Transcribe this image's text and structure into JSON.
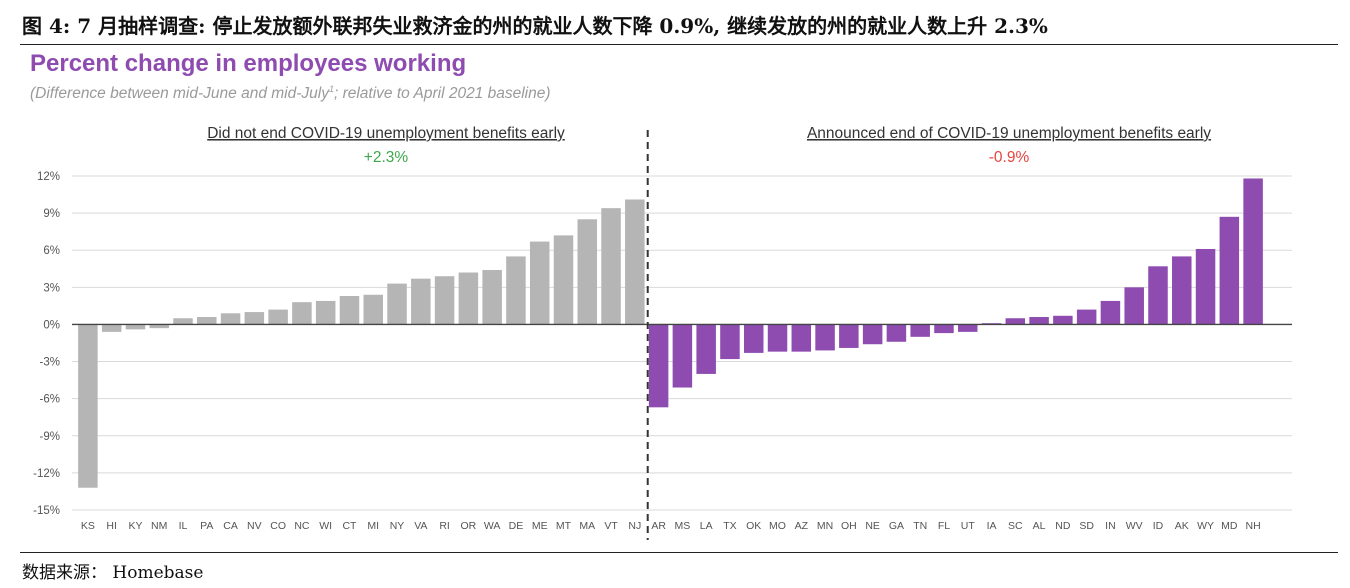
{
  "figure_title": "图 4: 7 月抽样调查: 停止发放额外联邦失业救济金的州的就业人数下降 0.9%, 继续发放的州的就业人数上升 2.3%",
  "source": "数据来源： Homebase",
  "colors": {
    "gray_bar": "#b5b5b5",
    "purple_bar": "#8e4bb0",
    "title_purple": "#8e4bb0",
    "positive": "#3ea84a",
    "negative": "#e8433d"
  },
  "chart_data": {
    "type": "bar",
    "title": "Percent change in employees working",
    "subtitle_pre": "(Difference between mid-June and mid-July",
    "subtitle_sup": "1",
    "subtitle_post": "; relative to April 2021 baseline)",
    "ylim": [
      -15,
      12
    ],
    "yticks": [
      12,
      9,
      6,
      3,
      0,
      -3,
      -6,
      -9,
      -12,
      -15
    ],
    "ytick_labels": [
      "12%",
      "9%",
      "6%",
      "3%",
      "0%",
      "-3%",
      "-6%",
      "-9%",
      "-12%",
      "-15%"
    ],
    "grid": true,
    "groups": [
      {
        "label": "Did not end COVID-19 unemployment benefits early",
        "summary": "+2.3%",
        "color": "#b5b5b5",
        "categories": [
          "KS",
          "HI",
          "KY",
          "NM",
          "IL",
          "PA",
          "CA",
          "NV",
          "CO",
          "NC",
          "WI",
          "CT",
          "MI",
          "NY",
          "VA",
          "RI",
          "OR",
          "WA",
          "DE",
          "ME",
          "MT",
          "MA",
          "VT",
          "NJ"
        ],
        "values": [
          -13.2,
          -0.6,
          -0.4,
          -0.3,
          0.5,
          0.6,
          0.9,
          1.0,
          1.2,
          1.8,
          1.9,
          2.3,
          2.4,
          3.3,
          3.7,
          3.9,
          4.2,
          4.4,
          5.5,
          6.7,
          7.2,
          8.5,
          9.4,
          10.1
        ]
      },
      {
        "label": "Announced end of COVID-19 unemployment benefits early",
        "summary": "-0.9%",
        "color": "#8e4bb0",
        "categories": [
          "AR",
          "MS",
          "LA",
          "TX",
          "OK",
          "MO",
          "AZ",
          "MN",
          "OH",
          "NE",
          "GA",
          "TN",
          "FL",
          "UT",
          "IA",
          "SC",
          "AL",
          "ND",
          "SD",
          "IN",
          "WV",
          "ID",
          "AK",
          "WY",
          "MD",
          "NH"
        ],
        "values": [
          -6.7,
          -5.1,
          -4.0,
          -2.8,
          -2.3,
          -2.2,
          -2.2,
          -2.1,
          -1.9,
          -1.6,
          -1.4,
          -1.0,
          -0.7,
          -0.6,
          0.1,
          0.5,
          0.6,
          0.7,
          1.2,
          1.9,
          3.0,
          4.7,
          5.5,
          6.1,
          8.7,
          11.8
        ]
      }
    ]
  }
}
